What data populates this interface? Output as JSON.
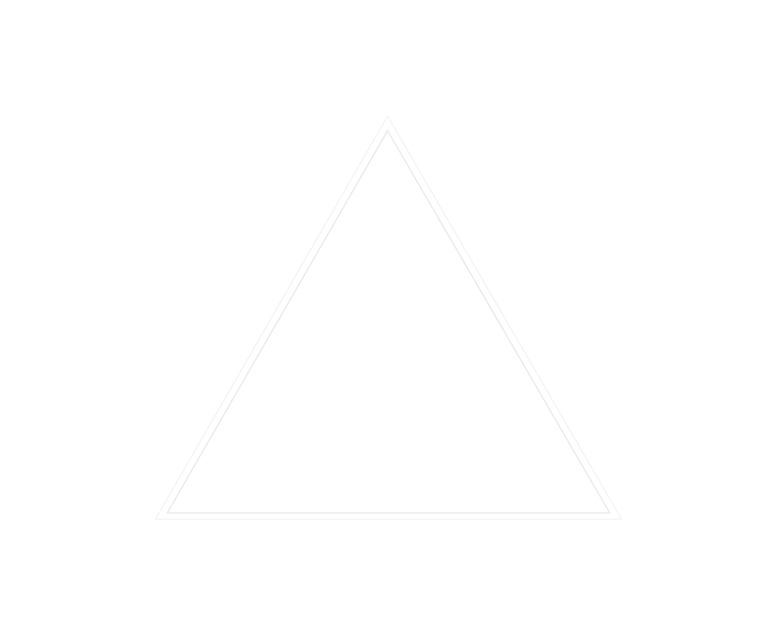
{
  "figure": {
    "shape": "triangle-outline",
    "style": "double-outline",
    "background_color": "#ffffff",
    "outer_stroke_color": "#f2f2f2",
    "inner_stroke_color": "#e6e6e6"
  }
}
